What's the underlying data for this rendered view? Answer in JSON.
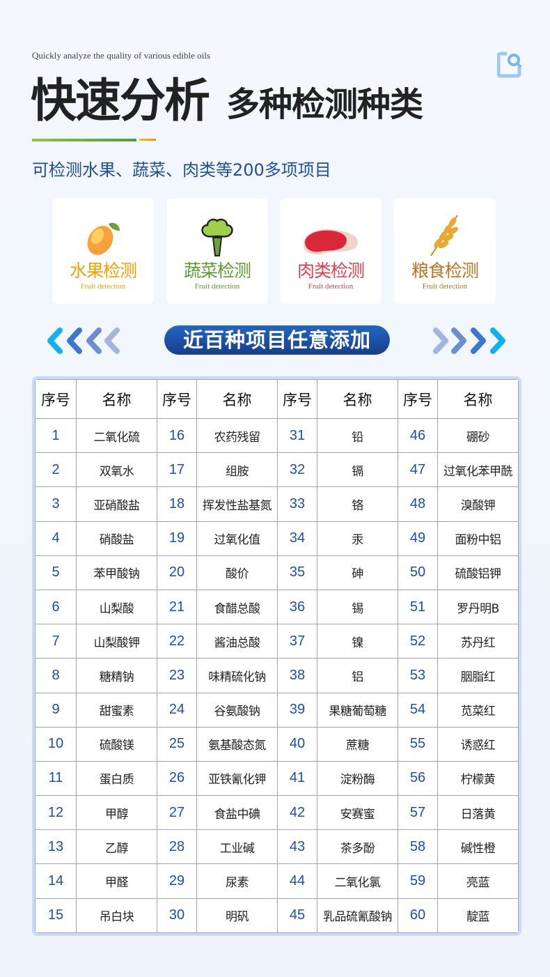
{
  "header": {
    "subtitle_en": "Quickly analyze the quality of various edible oils",
    "title": "快速分析",
    "title_sub": "多种检测种类",
    "description": "可检测水果、蔬菜、肉类等200多项项目"
  },
  "cards": [
    {
      "title": "水果检测",
      "en": "Fruit detection",
      "color": "#f5a000",
      "icon": "mango-icon"
    },
    {
      "title": "蔬菜检测",
      "en": "Fruit detection",
      "color": "#5a9a2e",
      "icon": "broccoli-icon"
    },
    {
      "title": "肉类检测",
      "en": "Fruit detection",
      "color": "#e0404a",
      "icon": "meat-icon"
    },
    {
      "title": "粮食检测",
      "en": "Fruit detection",
      "color": "#b8741f",
      "icon": "wheat-icon"
    }
  ],
  "banner": {
    "label": "近百种项目任意添加"
  },
  "table": {
    "headers": [
      "序号",
      "名称",
      "序号",
      "名称",
      "序号",
      "名称",
      "序号",
      "名称"
    ],
    "rows": [
      [
        "1",
        "二氧化硫",
        "16",
        "农药残留",
        "31",
        "铅",
        "46",
        "硼砂"
      ],
      [
        "2",
        "双氧水",
        "17",
        "组胺",
        "32",
        "镉",
        "47",
        "过氧化苯甲酰"
      ],
      [
        "3",
        "亚硝酸盐",
        "18",
        "挥发性盐基氮",
        "33",
        "铬",
        "48",
        "溴酸钾"
      ],
      [
        "4",
        "硝酸盐",
        "19",
        "过氧化值",
        "34",
        "汞",
        "49",
        "面粉中铝"
      ],
      [
        "5",
        "苯甲酸钠",
        "20",
        "酸价",
        "35",
        "砷",
        "50",
        "硫酸铝钾"
      ],
      [
        "6",
        "山梨酸",
        "21",
        "食醋总酸",
        "36",
        "锡",
        "51",
        "罗丹明B"
      ],
      [
        "7",
        "山梨酸钾",
        "22",
        "酱油总酸",
        "37",
        "镍",
        "52",
        "苏丹红"
      ],
      [
        "8",
        "糖精钠",
        "23",
        "味精硫化钠",
        "38",
        "铝",
        "53",
        "胭脂红"
      ],
      [
        "9",
        "甜蜜素",
        "24",
        "谷氨酸钠",
        "39",
        "果糖葡萄糖",
        "54",
        "苋菜红"
      ],
      [
        "10",
        "硫酸镁",
        "25",
        "氨基酸态氮",
        "40",
        "蔗糖",
        "55",
        "诱惑红"
      ],
      [
        "11",
        "蛋白质",
        "26",
        "亚铁氰化钾",
        "41",
        "淀粉酶",
        "56",
        "柠檬黄"
      ],
      [
        "12",
        "甲醇",
        "27",
        "食盐中碘",
        "42",
        "安赛蜜",
        "57",
        "日落黄"
      ],
      [
        "13",
        "乙醇",
        "28",
        "工业碱",
        "43",
        "茶多酚",
        "58",
        "碱性橙"
      ],
      [
        "14",
        "甲醛",
        "29",
        "尿素",
        "44",
        "二氧化氯",
        "59",
        "亮蓝"
      ],
      [
        "15",
        "吊白块",
        "30",
        "明矾",
        "45",
        "乳品硫氰酸钠",
        "60",
        "靛蓝"
      ]
    ]
  }
}
